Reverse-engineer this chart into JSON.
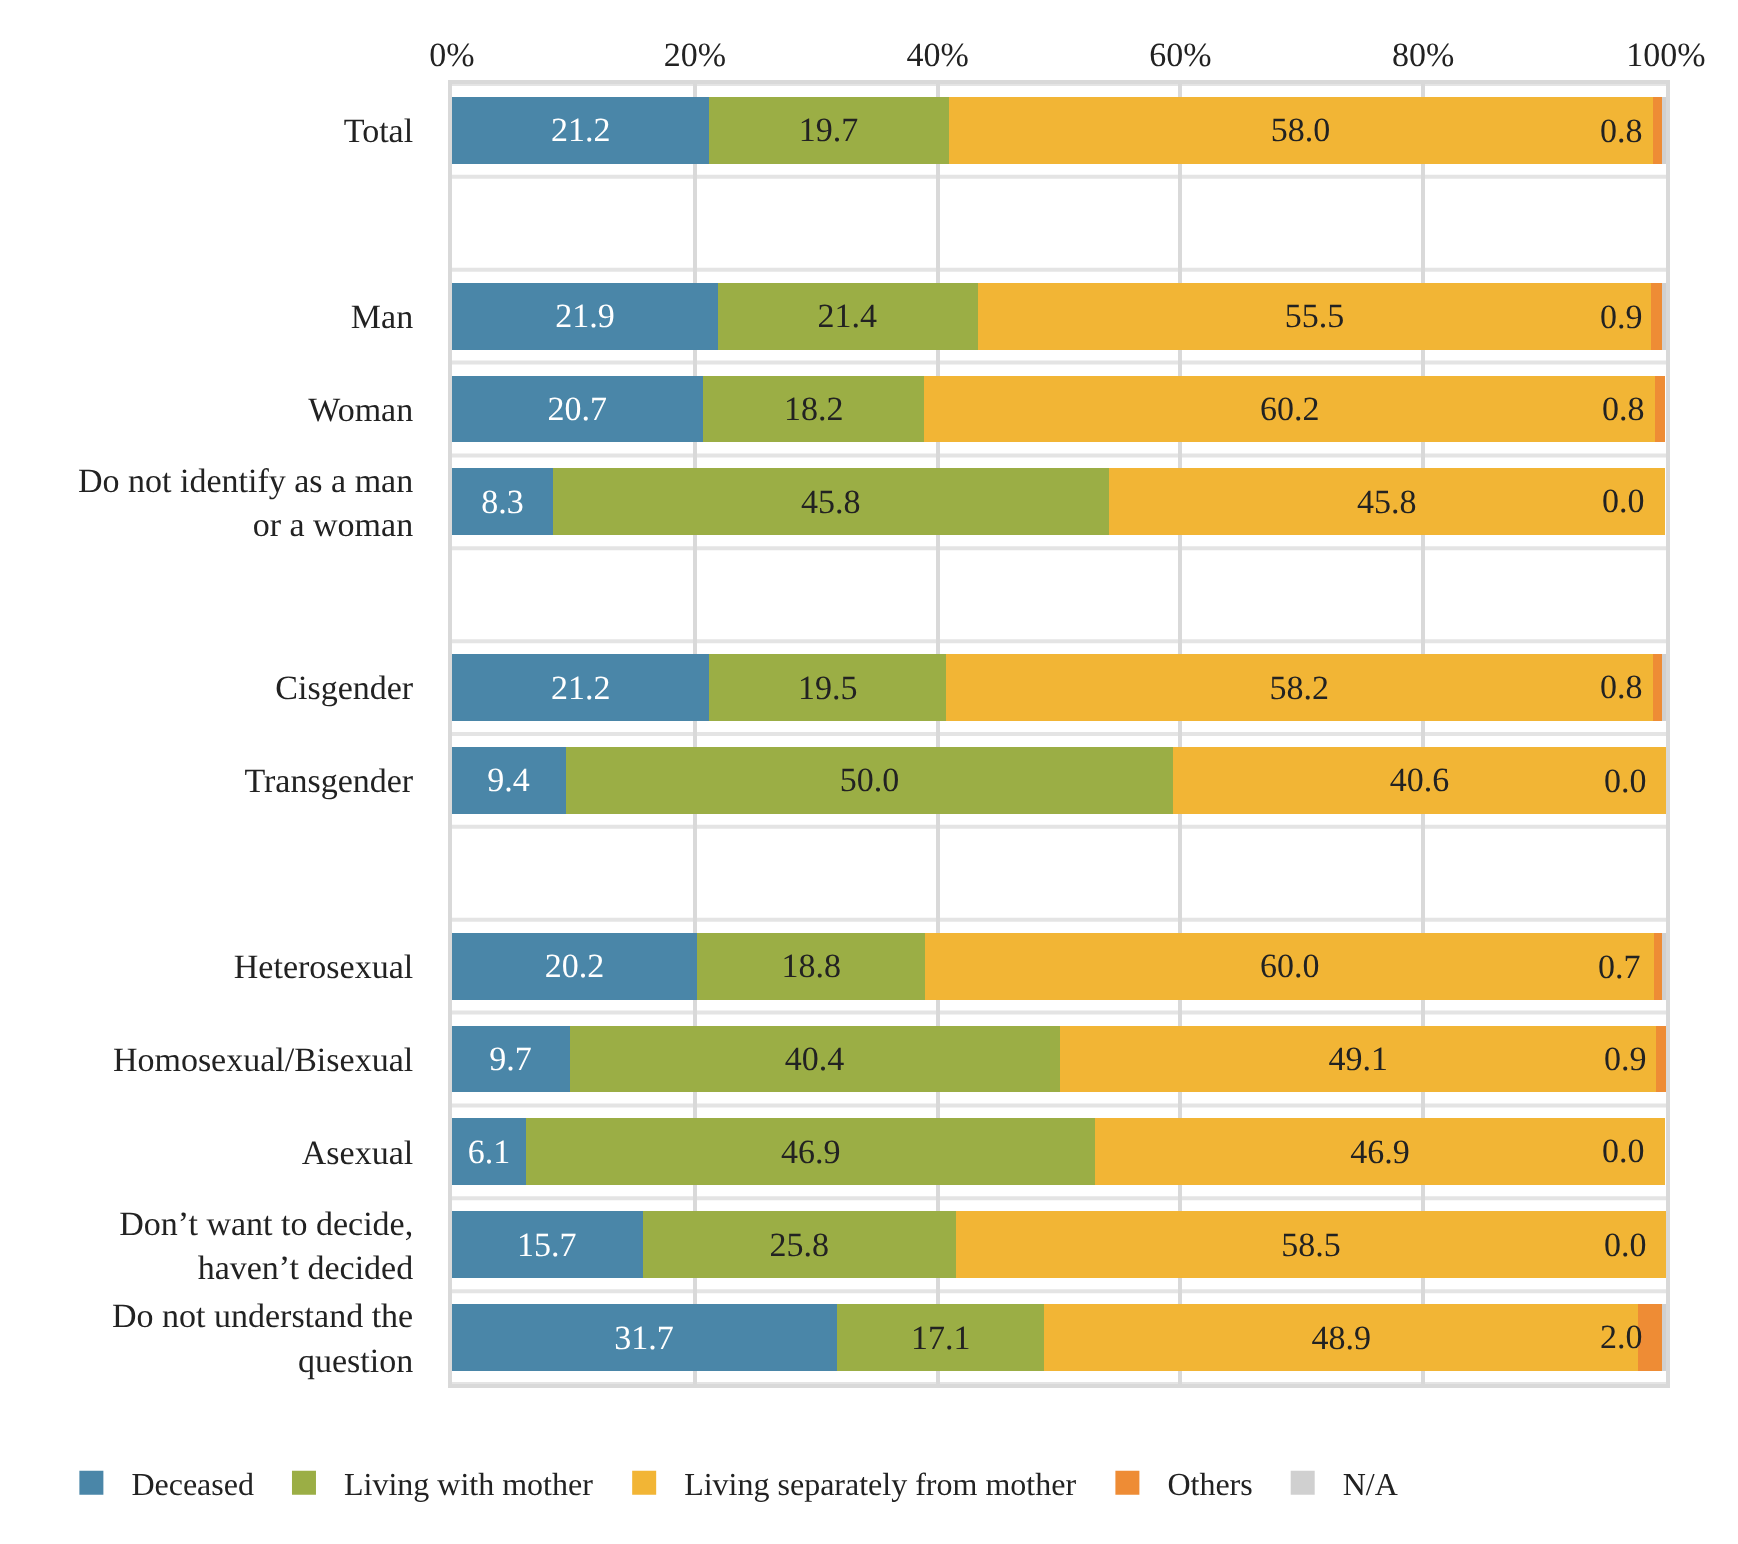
{
  "chart_data": {
    "type": "bar",
    "orientation": "horizontal",
    "stacked": true,
    "categories": [
      "Total",
      null,
      "Man",
      "Woman",
      "Do not identify as a man\nor a woman",
      null,
      "Cisgender",
      "Transgender",
      null,
      "Heterosexual",
      "Homosexual/Bisexual",
      "Asexual",
      "Don’t want to decide,\nhaven’t decided",
      "Do not understand the\nquestion"
    ],
    "series": [
      {
        "name": "Deceased",
        "color": "#4a86a8",
        "values": [
          21.2,
          null,
          21.9,
          20.7,
          8.3,
          null,
          21.2,
          9.4,
          null,
          20.2,
          9.7,
          6.1,
          15.7,
          31.7
        ],
        "value_labels": [
          "21.2",
          null,
          "21.9",
          "20.7",
          "8.3",
          null,
          "21.2",
          "9.4",
          null,
          "20.2",
          "9.7",
          "6.1",
          "15.7",
          "31.7"
        ]
      },
      {
        "name": "Living with mother",
        "color": "#9bae45",
        "values": [
          19.7,
          null,
          21.4,
          18.2,
          45.8,
          null,
          19.5,
          50.0,
          null,
          18.8,
          40.4,
          46.9,
          25.8,
          17.1
        ],
        "value_labels": [
          "19.7",
          null,
          "21.4",
          "18.2",
          "45.8",
          null,
          "19.5",
          "50.0",
          null,
          "18.8",
          "40.4",
          "46.9",
          "25.8",
          "17.1"
        ]
      },
      {
        "name": "Living separately from mother",
        "color": "#f2b535",
        "values": [
          58.0,
          null,
          55.5,
          60.2,
          45.8,
          null,
          58.2,
          40.6,
          null,
          60.0,
          49.1,
          46.9,
          58.5,
          48.9
        ],
        "value_labels": [
          "58.0",
          null,
          "55.5",
          "60.2",
          "45.8",
          null,
          "58.2",
          "40.6",
          null,
          "60.0",
          "49.1",
          "46.9",
          "58.5",
          "48.9"
        ]
      },
      {
        "name": "Others",
        "color": "#ee8c35",
        "values": [
          0.8,
          null,
          0.9,
          0.8,
          0.0,
          null,
          0.8,
          0.0,
          null,
          0.7,
          0.9,
          0.0,
          0.0,
          2.0
        ],
        "value_labels": [
          "0.8",
          null,
          "0.9",
          "0.8",
          "0.0",
          null,
          "0.8",
          "0.0",
          null,
          "0.7",
          "0.9",
          "0.0",
          "0.0",
          "2.0"
        ]
      },
      {
        "name": "N/A",
        "color": "#d0d0d0",
        "values": [
          0.3,
          null,
          0.3,
          null,
          null,
          null,
          0.3,
          0.0,
          null,
          0.3,
          0.0,
          null,
          0.0,
          0.3
        ]
      }
    ],
    "xlim": [
      0,
      100
    ],
    "xticks": [
      {
        "value": 0,
        "label": "0%"
      },
      {
        "value": 20,
        "label": "20%"
      },
      {
        "value": 40,
        "label": "40%"
      },
      {
        "value": 60,
        "label": "60%"
      },
      {
        "value": 80,
        "label": "80%"
      },
      {
        "value": 100,
        "label": "100%"
      }
    ],
    "grid": true,
    "legend": "bottom"
  }
}
